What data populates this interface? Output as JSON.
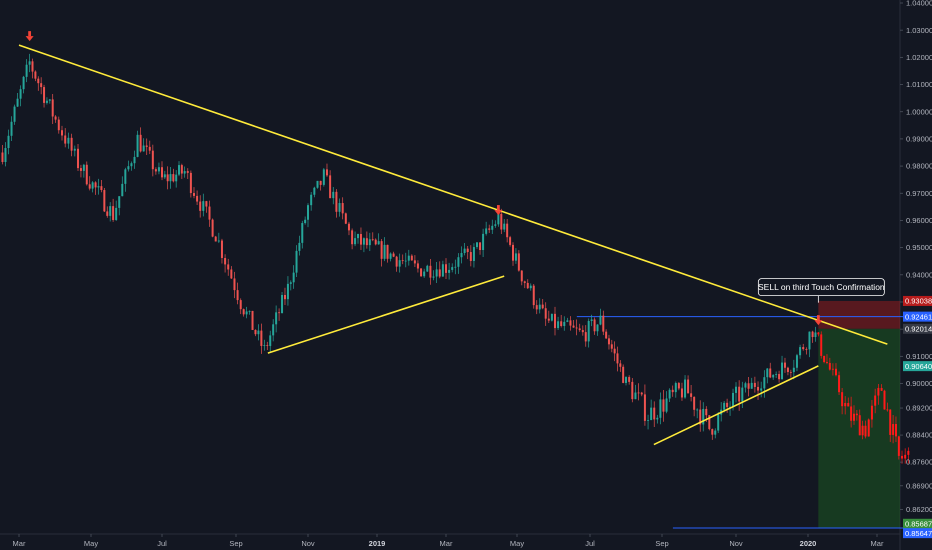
{
  "chart_data": {
    "type": "candlestick",
    "symbol_description": "",
    "y_axis": {
      "ticks": [
        "1.04000",
        "1.03000",
        "1.02000",
        "1.01000",
        "1.00000",
        "0.99000",
        "0.98000",
        "0.97000",
        "0.96000",
        "0.95000",
        "0.94000",
        "0.93000",
        "0.92000",
        "0.91000",
        "0.90000",
        "0.89200",
        "0.88400",
        "0.87600",
        "0.86900",
        "0.86200"
      ],
      "tick_values": [
        1.04,
        1.03,
        1.02,
        1.01,
        1.0,
        0.99,
        0.98,
        0.97,
        0.96,
        0.95,
        0.94,
        0.93,
        0.92,
        0.91,
        0.9,
        0.892,
        0.884,
        0.876,
        0.869,
        0.862
      ],
      "range": [
        0.8555,
        1.0405
      ],
      "side": "right"
    },
    "x_axis": {
      "ticks": [
        "Mar",
        "May",
        "Jul",
        "Sep",
        "Nov",
        "2019",
        "Mar",
        "May",
        "Jul",
        "Sep",
        "Nov",
        "2020",
        "Mar"
      ],
      "year_ticks": [
        "2019",
        "2020"
      ],
      "range": [
        "2018-03",
        "2020-03"
      ]
    },
    "price_path": [
      {
        "date": "2018-02-15",
        "close": 0.985
      },
      {
        "date": "2018-03-10",
        "close": 1.018
      },
      {
        "date": "2018-04-01",
        "close": 0.997
      },
      {
        "date": "2018-04-20",
        "close": 0.981
      },
      {
        "date": "2018-05-20",
        "close": 0.962
      },
      {
        "date": "2018-06-10",
        "close": 0.99
      },
      {
        "date": "2018-07-01",
        "close": 0.975
      },
      {
        "date": "2018-07-20",
        "close": 0.978
      },
      {
        "date": "2018-08-15",
        "close": 0.955
      },
      {
        "date": "2018-09-05",
        "close": 0.93
      },
      {
        "date": "2018-09-25",
        "close": 0.912
      },
      {
        "date": "2018-10-15",
        "close": 0.935
      },
      {
        "date": "2018-11-01",
        "close": 0.965
      },
      {
        "date": "2018-11-15",
        "close": 0.976
      },
      {
        "date": "2018-12-10",
        "close": 0.953
      },
      {
        "date": "2019-01-10",
        "close": 0.948
      },
      {
        "date": "2019-02-05",
        "close": 0.942
      },
      {
        "date": "2019-03-01",
        "close": 0.943
      },
      {
        "date": "2019-03-25",
        "close": 0.948
      },
      {
        "date": "2019-04-15",
        "close": 0.961
      },
      {
        "date": "2019-05-05",
        "close": 0.94
      },
      {
        "date": "2019-05-25",
        "close": 0.923
      },
      {
        "date": "2019-06-25",
        "close": 0.918
      },
      {
        "date": "2019-07-10",
        "close": 0.923
      },
      {
        "date": "2019-08-01",
        "close": 0.9
      },
      {
        "date": "2019-08-20",
        "close": 0.89
      },
      {
        "date": "2019-09-20",
        "close": 0.898
      },
      {
        "date": "2019-10-10",
        "close": 0.886
      },
      {
        "date": "2019-11-01",
        "close": 0.895
      },
      {
        "date": "2019-11-25",
        "close": 0.902
      },
      {
        "date": "2019-12-20",
        "close": 0.908
      },
      {
        "date": "2020-01-05",
        "close": 0.92
      },
      {
        "date": "2020-01-20",
        "close": 0.905
      },
      {
        "date": "2020-02-05",
        "close": 0.89
      },
      {
        "date": "2020-02-20",
        "close": 0.886
      },
      {
        "date": "2020-03-05",
        "close": 0.898
      },
      {
        "date": "2020-03-20",
        "close": 0.877
      },
      {
        "date": "2020-03-31",
        "close": 0.878
      }
    ],
    "trendlines": [
      {
        "id": "major-descending",
        "color": "#ffeb3b",
        "from": {
          "date": "2018-03-01",
          "price": 1.0245
        },
        "to": {
          "date": "2020-03-10",
          "price": 0.9145
        }
      },
      {
        "id": "support-2018",
        "color": "#ffeb3b",
        "from": {
          "date": "2018-09-28",
          "price": 0.9112
        },
        "to": {
          "date": "2019-04-20",
          "price": 0.9395
        }
      },
      {
        "id": "support-2019",
        "color": "#ffeb3b",
        "from": {
          "date": "2019-08-25",
          "price": 0.8812
        },
        "to": {
          "date": "2020-01-10",
          "price": 0.9065
        }
      }
    ],
    "horizontal_lines": [
      {
        "id": "entry-level",
        "color": "#2962ff",
        "price": 0.9246,
        "from": "2019-06-20",
        "to": "2020-03-31"
      },
      {
        "id": "target-level",
        "color": "#2962ff",
        "price": 0.8565,
        "from": "2019-09-10",
        "to": "2020-03-31"
      }
    ],
    "position_tool": {
      "side": "short",
      "start": "2020-01-10",
      "end": "2020-03-31",
      "entry": 0.92014,
      "stop": 0.93038,
      "target": 0.8565,
      "profit_color": "#1b5e20",
      "loss_color": "#b71c1c"
    },
    "touch_markers": [
      {
        "date": "2018-03-10",
        "price": 1.0245,
        "color": "#f44336"
      },
      {
        "date": "2019-04-15",
        "price": 0.9605,
        "color": "#f44336"
      },
      {
        "date": "2020-01-10",
        "price": 0.92,
        "color": "#f44336"
      }
    ],
    "annotation": {
      "text": "SELL on third Touch Confirmation",
      "anchor_date": "2020-01-10",
      "anchor_price": 0.9246
    },
    "price_labels": [
      {
        "text": "0.93038",
        "price": 0.93038,
        "color": "#b71c1c"
      },
      {
        "text": "0.92461",
        "price": 0.92461,
        "color": "#2962ff"
      },
      {
        "text": "0.92014",
        "price": 0.92014,
        "color": "#363a45"
      },
      {
        "text": "0.90640",
        "price": 0.9064,
        "color": "#26a69a"
      },
      {
        "text": "0.85687",
        "price": 0.85687,
        "color": "#388e3c"
      },
      {
        "text": "0.85647",
        "price": 0.85647,
        "color": "#2962ff"
      }
    ],
    "colors": {
      "background": "#131722",
      "up": "#26a69a",
      "down": "#ef5350",
      "projection": "#ff1a1a"
    }
  }
}
